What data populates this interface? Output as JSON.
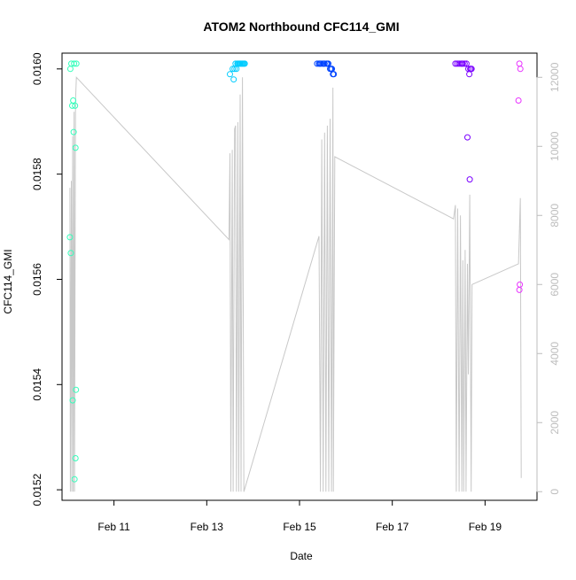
{
  "chart_data": {
    "type": "scatter",
    "title": "ATOM2 Northbound CFC114_GMI",
    "xlabel": "Date",
    "ylabel": "CFC114_GMI",
    "x_ticks": [
      "Feb 11",
      "Feb 13",
      "Feb 15",
      "Feb 17",
      "Feb 19"
    ],
    "x_tick_days": [
      11,
      13,
      15,
      17,
      19
    ],
    "xlim": [
      9.88,
      20.12
    ],
    "y_ticks": [
      "0.0152",
      "0.0154",
      "0.0156",
      "0.0158",
      "0.0160"
    ],
    "y_tick_values": [
      0.0152,
      0.0154,
      0.0156,
      0.0158,
      0.016
    ],
    "ylim": [
      0.01518,
      0.01603
    ],
    "y2_ticks": [
      "0",
      "2000",
      "4000",
      "6000",
      "8000",
      "10000",
      "12000"
    ],
    "y2_tick_values": [
      0,
      2000,
      4000,
      6000,
      8000,
      10000,
      12000
    ],
    "y2lim": [
      -250,
      12700
    ],
    "grid": false,
    "point_colors": [
      "#33ffbb",
      "#00ccff",
      "#0044ff",
      "#7a00ff",
      "#e833ff"
    ],
    "line_color": "#c8c8c8",
    "axis_color": "#000000",
    "y2_color": "#bdbdbd",
    "series": [
      {
        "points": [
          [
            10.08,
            0.01601
          ],
          [
            10.14,
            0.01601
          ],
          [
            10.19,
            0.01601
          ],
          [
            10.06,
            0.016
          ],
          [
            10.12,
            0.01594
          ],
          [
            10.1,
            0.01593
          ],
          [
            10.16,
            0.01593
          ],
          [
            10.13,
            0.01588
          ],
          [
            10.17,
            0.01585
          ],
          [
            10.05,
            0.01568
          ],
          [
            10.07,
            0.01565
          ],
          [
            10.18,
            0.01539
          ],
          [
            10.11,
            0.01537
          ],
          [
            10.17,
            0.01526
          ],
          [
            10.15,
            0.01522
          ]
        ]
      },
      {
        "points": [
          [
            13.5,
            0.01599
          ],
          [
            13.56,
            0.016
          ],
          [
            13.6,
            0.016
          ],
          [
            13.62,
            0.01601
          ],
          [
            13.66,
            0.01601
          ],
          [
            13.7,
            0.01601
          ],
          [
            13.74,
            0.01601
          ],
          [
            13.78,
            0.01601
          ],
          [
            13.82,
            0.01601
          ],
          [
            13.58,
            0.01598
          ],
          [
            13.64,
            0.016
          ],
          [
            13.68,
            0.01601
          ],
          [
            13.76,
            0.01601
          ],
          [
            13.8,
            0.01601
          ],
          [
            13.72,
            0.01601
          ]
        ]
      },
      {
        "points": [
          [
            15.38,
            0.01601
          ],
          [
            15.42,
            0.01601
          ],
          [
            15.46,
            0.01601
          ],
          [
            15.5,
            0.01601
          ],
          [
            15.54,
            0.01601
          ],
          [
            15.58,
            0.01601
          ],
          [
            15.62,
            0.01601
          ],
          [
            15.66,
            0.016
          ],
          [
            15.68,
            0.016
          ],
          [
            15.7,
            0.016
          ],
          [
            15.72,
            0.01599
          ],
          [
            15.74,
            0.01599
          ],
          [
            15.44,
            0.01601
          ],
          [
            15.52,
            0.01601
          ],
          [
            15.6,
            0.01601
          ]
        ]
      },
      {
        "points": [
          [
            18.36,
            0.01601
          ],
          [
            18.4,
            0.01601
          ],
          [
            18.44,
            0.01601
          ],
          [
            18.48,
            0.01601
          ],
          [
            18.52,
            0.01601
          ],
          [
            18.56,
            0.01601
          ],
          [
            18.6,
            0.01601
          ],
          [
            18.64,
            0.016
          ],
          [
            18.66,
            0.01599
          ],
          [
            18.68,
            0.016
          ],
          [
            18.69,
            0.016
          ],
          [
            18.71,
            0.016
          ],
          [
            18.62,
            0.01587
          ],
          [
            18.67,
            0.01579
          ],
          [
            18.5,
            0.01601
          ]
        ]
      },
      {
        "points": [
          [
            19.74,
            0.01601
          ],
          [
            19.76,
            0.016
          ],
          [
            19.72,
            0.01594
          ],
          [
            19.75,
            0.01559
          ],
          [
            19.74,
            0.01558
          ]
        ]
      }
    ],
    "secondary_series": {
      "axis": "right",
      "type": "line",
      "points": [
        [
          10.05,
          8800
        ],
        [
          10.06,
          0
        ],
        [
          10.08,
          9000
        ],
        [
          10.09,
          0
        ],
        [
          10.11,
          10300
        ],
        [
          10.12,
          0
        ],
        [
          10.14,
          11000
        ],
        [
          10.15,
          0
        ],
        [
          10.17,
          11300
        ],
        [
          10.19,
          12000
        ],
        [
          13.48,
          7300
        ],
        [
          13.5,
          9800
        ],
        [
          13.52,
          0
        ],
        [
          13.55,
          9900
        ],
        [
          13.57,
          0
        ],
        [
          13.6,
          10500
        ],
        [
          13.62,
          10600
        ],
        [
          13.64,
          0
        ],
        [
          13.67,
          10700
        ],
        [
          13.69,
          0
        ],
        [
          13.72,
          11500
        ],
        [
          13.74,
          0
        ],
        [
          13.77,
          12000
        ],
        [
          13.8,
          0
        ],
        [
          15.42,
          7400
        ],
        [
          15.45,
          0
        ],
        [
          15.48,
          10200
        ],
        [
          15.51,
          0
        ],
        [
          15.54,
          10400
        ],
        [
          15.57,
          0
        ],
        [
          15.6,
          10600
        ],
        [
          15.63,
          0
        ],
        [
          15.66,
          10800
        ],
        [
          15.69,
          0
        ],
        [
          15.72,
          11700
        ],
        [
          15.73,
          0
        ],
        [
          15.76,
          9700
        ],
        [
          18.32,
          7900
        ],
        [
          18.36,
          8300
        ],
        [
          18.38,
          0
        ],
        [
          18.41,
          8200
        ],
        [
          18.44,
          0
        ],
        [
          18.47,
          8000
        ],
        [
          18.5,
          0
        ],
        [
          18.52,
          6700
        ],
        [
          18.54,
          0
        ],
        [
          18.57,
          7000
        ],
        [
          18.59,
          0
        ],
        [
          18.62,
          6600
        ],
        [
          18.64,
          3400
        ],
        [
          18.67,
          8600
        ],
        [
          18.7,
          0
        ],
        [
          18.72,
          6000
        ],
        [
          19.72,
          6600
        ],
        [
          19.76,
          8500
        ],
        [
          19.78,
          400
        ]
      ]
    }
  }
}
